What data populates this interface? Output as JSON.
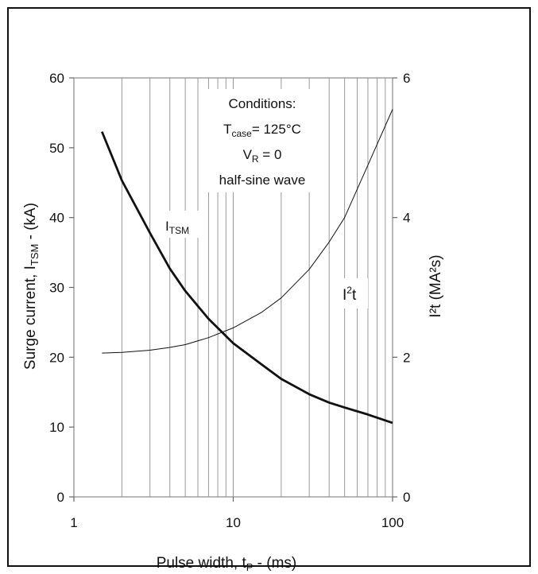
{
  "chart_data": {
    "type": "line",
    "xlabel": "Pulse width, t",
    "xlabel_sub": "P",
    "xlabel_unit": " - (ms)",
    "ylabel_left_main": "Surge current, I",
    "ylabel_left_sub": "TSM",
    "ylabel_left_unit": " -  (kA)",
    "ylabel_right": "I²t (MA²s)",
    "x_scale": "log",
    "xlim": [
      1,
      100
    ],
    "ylim_left": [
      0,
      60
    ],
    "ylim_right": [
      0,
      6
    ],
    "x_ticks": [
      1,
      10,
      100
    ],
    "y_left_ticks": [
      0,
      10,
      20,
      30,
      40,
      50,
      60
    ],
    "y_right_ticks": [
      0,
      2,
      4,
      6
    ],
    "grid": "vertical log minor lines",
    "annotation": {
      "line1": "Conditions:",
      "line2_main": "T",
      "line2_sub": "case",
      "line2_rest": "= 125°C",
      "line3_main": "V",
      "line3_sub": "R",
      "line3_rest": " = 0",
      "line4": "half-sine wave"
    },
    "series": [
      {
        "name": "ITSM",
        "label_main": "I",
        "label_sub": "TSM",
        "axis": "left",
        "line_width": "thick",
        "x": [
          1.5,
          2,
          3,
          4,
          5,
          7,
          10,
          15,
          20,
          30,
          40,
          50,
          70,
          100
        ],
        "y": [
          52.3,
          45.3,
          37.8,
          32.7,
          29.5,
          25.5,
          22.0,
          19.0,
          16.9,
          14.7,
          13.5,
          12.8,
          11.8,
          10.6
        ]
      },
      {
        "name": "I2t",
        "label_main": "I",
        "label_sup": "2",
        "label_rest": "t",
        "axis": "right",
        "line_width": "thin",
        "x": [
          1.5,
          2,
          3,
          4,
          5,
          7,
          10,
          15,
          20,
          30,
          40,
          50,
          70,
          100
        ],
        "y": [
          2.06,
          2.07,
          2.1,
          2.14,
          2.18,
          2.28,
          2.42,
          2.64,
          2.85,
          3.26,
          3.65,
          4.0,
          4.75,
          5.55
        ]
      }
    ]
  }
}
